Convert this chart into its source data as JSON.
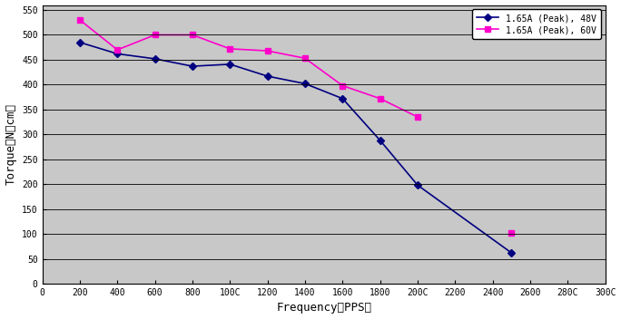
{
  "series1": {
    "label": "1.65A (Peak), 48V",
    "color": "#000080",
    "marker": "D",
    "x": [
      200,
      400,
      600,
      800,
      1000,
      1200,
      1400,
      1600,
      1800,
      2000,
      2500
    ],
    "y": [
      485,
      462,
      452,
      437,
      441,
      417,
      402,
      372,
      288,
      198,
      62
    ]
  },
  "series2": {
    "label": "1.65A (Peak), 60V",
    "color": "#FF00CC",
    "marker": "s",
    "x": [
      200,
      400,
      600,
      800,
      1000,
      1200,
      1400,
      1600,
      1800,
      2000,
      2200,
      2500
    ],
    "y": [
      530,
      470,
      500,
      500,
      472,
      468,
      453,
      398,
      372,
      335,
      null,
      102
    ]
  },
  "xlim": [
    0,
    3000
  ],
  "ylim": [
    0,
    560
  ],
  "xticks": [
    0,
    200,
    400,
    600,
    800,
    1000,
    1200,
    1400,
    1600,
    1800,
    2000,
    2200,
    2400,
    2600,
    2800,
    3000
  ],
  "xticklabels": [
    "0",
    "200",
    "400",
    "600",
    "800",
    "100C",
    "1200",
    "1400",
    "1600",
    "1800",
    "200C",
    "2200",
    "2400",
    "2600",
    "280C",
    "300C"
  ],
  "yticks": [
    0,
    50,
    100,
    150,
    200,
    250,
    300,
    350,
    400,
    450,
    500,
    550
  ],
  "xlabel": "Frequency（PPS）",
  "ylabel": "Torque（N．cm）",
  "background_color": "#C8C8C8",
  "plot_bg": "#C8C8C8",
  "grid_color": "#000000",
  "fig_bg": "#FFFFFF"
}
